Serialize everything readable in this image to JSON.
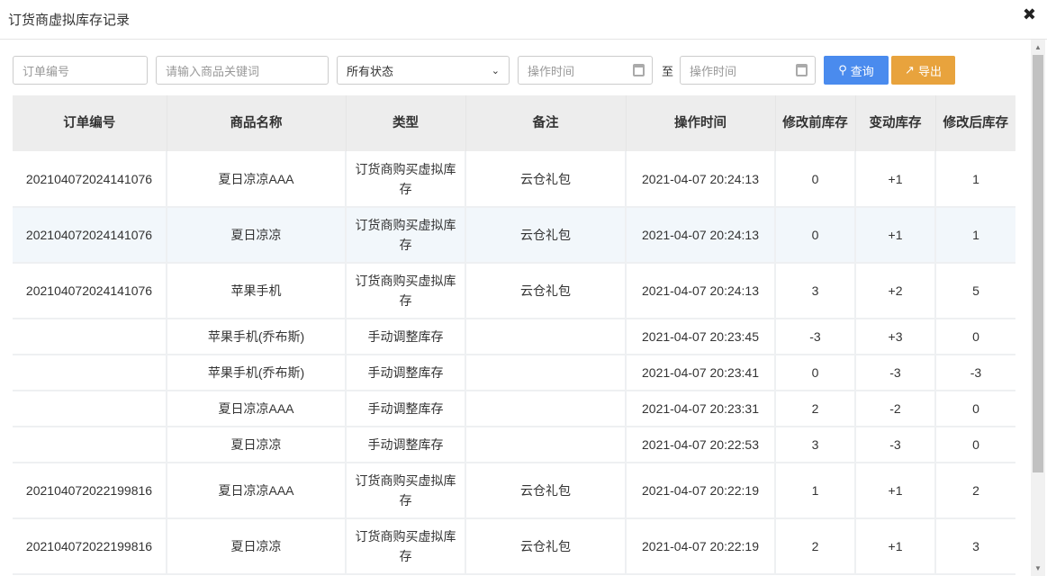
{
  "title": "订货商虚拟库存记录",
  "filters": {
    "order_no_placeholder": "订单编号",
    "keyword_placeholder": "请输入商品关键词",
    "status_selected": "所有状态",
    "start_time_placeholder": "操作时间",
    "to_label": "至",
    "end_time_placeholder": "操作时间",
    "search_label": "查询",
    "export_label": "导出"
  },
  "colors": {
    "search": "#4a8bee",
    "export": "#e8a33d"
  },
  "columns": [
    "订单编号",
    "商品名称",
    "类型",
    "备注",
    "操作时间",
    "修改前库存",
    "变动库存",
    "修改后库存"
  ],
  "rows": [
    [
      "202104072024141076",
      "夏日凉凉AAA",
      "订货商购买虚拟库存",
      "云仓礼包",
      "2021-04-07 20:24:13",
      "0",
      "+1",
      "1"
    ],
    [
      "202104072024141076",
      "夏日凉凉",
      "订货商购买虚拟库存",
      "云仓礼包",
      "2021-04-07 20:24:13",
      "0",
      "+1",
      "1"
    ],
    [
      "202104072024141076",
      "苹果手机",
      "订货商购买虚拟库存",
      "云仓礼包",
      "2021-04-07 20:24:13",
      "3",
      "+2",
      "5"
    ],
    [
      "",
      "苹果手机(乔布斯)",
      "手动调整库存",
      "",
      "2021-04-07 20:23:45",
      "-3",
      "+3",
      "0"
    ],
    [
      "",
      "苹果手机(乔布斯)",
      "手动调整库存",
      "",
      "2021-04-07 20:23:41",
      "0",
      "-3",
      "-3"
    ],
    [
      "",
      "夏日凉凉AAA",
      "手动调整库存",
      "",
      "2021-04-07 20:23:31",
      "2",
      "-2",
      "0"
    ],
    [
      "",
      "夏日凉凉",
      "手动调整库存",
      "",
      "2021-04-07 20:22:53",
      "3",
      "-3",
      "0"
    ],
    [
      "202104072022199816",
      "夏日凉凉AAA",
      "订货商购买虚拟库存",
      "云仓礼包",
      "2021-04-07 20:22:19",
      "1",
      "+1",
      "2"
    ],
    [
      "202104072022199816",
      "夏日凉凉",
      "订货商购买虚拟库存",
      "云仓礼包",
      "2021-04-07 20:22:19",
      "2",
      "+1",
      "3"
    ]
  ]
}
